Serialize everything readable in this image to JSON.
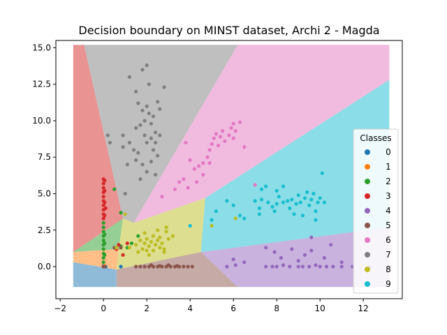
{
  "chart_data": {
    "type": "scatter",
    "title": "Decision boundary on MINST dataset, Archi 2 - Magda",
    "xlabel": "",
    "ylabel": "",
    "xlim": [
      -2.2,
      13.8
    ],
    "ylim": [
      -2.2,
      15.5
    ],
    "xticks": [
      -2,
      0,
      2,
      4,
      6,
      8,
      10,
      12
    ],
    "yticks": [
      0.0,
      2.5,
      5.0,
      7.5,
      10.0,
      12.5,
      15.0
    ],
    "grid": false,
    "legend": {
      "title": "Classes",
      "placement": "right",
      "labels": [
        "0",
        "1",
        "2",
        "3",
        "4",
        "5",
        "6",
        "7",
        "8",
        "9"
      ]
    },
    "class_colors": [
      "#1f77b4",
      "#ff7f0e",
      "#2ca02c",
      "#d62728",
      "#9467bd",
      "#8c564b",
      "#e377c2",
      "#7f7f7f",
      "#bcbd22",
      "#17becf"
    ],
    "decision_regions": [
      {
        "class": "0",
        "polygon": [
          [
            -1.4,
            -1.4
          ],
          [
            0.6,
            -1.4
          ],
          [
            0.6,
            -0.2
          ],
          [
            -1.4,
            0.3
          ]
        ]
      },
      {
        "class": "1",
        "polygon": [
          [
            -1.4,
            0.3
          ],
          [
            0.6,
            -0.2
          ],
          [
            0.7,
            1.2
          ],
          [
            -1.4,
            1.0
          ]
        ]
      },
      {
        "class": "2",
        "polygon": [
          [
            -1.4,
            1.0
          ],
          [
            0.7,
            1.2
          ],
          [
            0.9,
            3.3
          ],
          [
            -1.4,
            1.0
          ]
        ]
      },
      {
        "class": "3",
        "polygon": [
          [
            -1.4,
            15.2
          ],
          [
            -0.9,
            15.2
          ],
          [
            0.9,
            3.3
          ],
          [
            -1.4,
            1.0
          ]
        ]
      },
      {
        "class": "4",
        "polygon": [
          [
            4.5,
            1.0
          ],
          [
            13.2,
            2.7
          ],
          [
            13.2,
            -1.4
          ],
          [
            6.2,
            -1.4
          ]
        ]
      },
      {
        "class": "5",
        "polygon": [
          [
            0.6,
            -1.4
          ],
          [
            6.2,
            -1.4
          ],
          [
            4.5,
            1.0
          ],
          [
            0.6,
            -0.2
          ]
        ]
      },
      {
        "class": "6",
        "polygon": [
          [
            1.4,
            3.0
          ],
          [
            6.2,
            15.2
          ],
          [
            13.2,
            15.2
          ],
          [
            13.2,
            12.8
          ],
          [
            4.7,
            4.7
          ]
        ]
      },
      {
        "class": "7",
        "polygon": [
          [
            -0.9,
            15.2
          ],
          [
            6.2,
            15.2
          ],
          [
            1.4,
            3.0
          ],
          [
            0.9,
            3.3
          ]
        ]
      },
      {
        "class": "8",
        "polygon": [
          [
            0.6,
            -0.2
          ],
          [
            4.5,
            1.0
          ],
          [
            4.7,
            4.7
          ],
          [
            1.4,
            3.0
          ],
          [
            0.9,
            3.3
          ],
          [
            0.7,
            1.2
          ]
        ]
      },
      {
        "class": "9",
        "polygon": [
          [
            4.7,
            4.7
          ],
          [
            13.2,
            12.8
          ],
          [
            13.2,
            2.7
          ],
          [
            4.5,
            1.0
          ]
        ]
      }
    ],
    "series": [
      {
        "name": "0",
        "points": [
          [
            0.0,
            0.0
          ],
          [
            0.05,
            0.0
          ],
          [
            0.1,
            0.0
          ],
          [
            0.0,
            0.05
          ],
          [
            0.8,
            0.0
          ]
        ]
      },
      {
        "name": "1",
        "points": [
          [
            0.0,
            0.0
          ],
          [
            0.05,
            0.05
          ]
        ]
      },
      {
        "name": "2",
        "points": [
          [
            0.0,
            0.3
          ],
          [
            0.0,
            0.6
          ],
          [
            0.0,
            0.9
          ],
          [
            0.0,
            1.2
          ],
          [
            0.0,
            1.5
          ],
          [
            0.0,
            1.8
          ],
          [
            0.0,
            2.1
          ],
          [
            0.0,
            2.4
          ],
          [
            0.0,
            2.7
          ],
          [
            0.0,
            3.0
          ],
          [
            0.05,
            0.8
          ],
          [
            0.05,
            1.6
          ],
          [
            0.05,
            2.2
          ],
          [
            0.5,
            5.3
          ],
          [
            0.8,
            3.7
          ],
          [
            0.8,
            1.4
          ],
          [
            1.3,
            1.6
          ],
          [
            1.1,
            1.3
          ],
          [
            1.6,
            2.1
          ]
        ]
      },
      {
        "name": "3",
        "points": [
          [
            0.0,
            3.3
          ],
          [
            0.0,
            3.6
          ],
          [
            0.0,
            3.9
          ],
          [
            0.0,
            4.2
          ],
          [
            0.0,
            4.5
          ],
          [
            0.0,
            4.8
          ],
          [
            0.0,
            5.1
          ],
          [
            0.0,
            5.4
          ],
          [
            0.0,
            5.7
          ],
          [
            0.0,
            6.0
          ],
          [
            0.05,
            3.5
          ],
          [
            0.05,
            4.4
          ],
          [
            0.05,
            5.2
          ],
          [
            0.05,
            5.9
          ],
          [
            0.1,
            4.0
          ],
          [
            0.6,
            1.2
          ],
          [
            0.9,
            0.8
          ],
          [
            1.1,
            1.6
          ],
          [
            0.7,
            1.5
          ]
        ]
      },
      {
        "name": "4",
        "points": [
          [
            5.7,
            0.0
          ],
          [
            6.1,
            0.1
          ],
          [
            6.0,
            0.5
          ],
          [
            6.5,
            0.3
          ],
          [
            7.5,
            0.0
          ],
          [
            7.8,
            0.0
          ],
          [
            8.0,
            0.0
          ],
          [
            8.3,
            0.1
          ],
          [
            8.6,
            0.0
          ],
          [
            9.0,
            0.0
          ],
          [
            9.2,
            0.0
          ],
          [
            9.5,
            0.0
          ],
          [
            9.8,
            0.1
          ],
          [
            10.0,
            0.0
          ],
          [
            10.3,
            0.0
          ],
          [
            10.6,
            0.0
          ],
          [
            11.0,
            0.0
          ],
          [
            11.5,
            0.0
          ],
          [
            12.3,
            0.0
          ],
          [
            7.9,
            1.0
          ],
          [
            8.2,
            0.6
          ],
          [
            8.7,
            1.2
          ],
          [
            9.0,
            0.4
          ],
          [
            9.3,
            0.8
          ],
          [
            9.6,
            1.1
          ],
          [
            10.2,
            0.6
          ],
          [
            11.0,
            0.3
          ],
          [
            7.5,
            1.3
          ],
          [
            9.6,
            2.0
          ],
          [
            10.5,
            1.5
          ]
        ]
      },
      {
        "name": "5",
        "points": [
          [
            1.5,
            0.0
          ],
          [
            1.7,
            0.0
          ],
          [
            1.9,
            0.0
          ],
          [
            2.1,
            0.0
          ],
          [
            2.3,
            0.0
          ],
          [
            2.5,
            0.0
          ],
          [
            2.7,
            0.0
          ],
          [
            2.9,
            0.0
          ],
          [
            3.1,
            0.0
          ],
          [
            3.3,
            0.0
          ],
          [
            3.5,
            0.0
          ],
          [
            3.7,
            0.0
          ],
          [
            3.9,
            0.0
          ],
          [
            4.1,
            0.0
          ],
          [
            2.2,
            0.1
          ],
          [
            2.6,
            0.05
          ],
          [
            3.0,
            0.1
          ],
          [
            3.4,
            0.05
          ],
          [
            0.0,
            0.0
          ],
          [
            0.05,
            0.0
          ],
          [
            0.5,
            1.3
          ],
          [
            0.8,
            1.3
          ]
        ]
      },
      {
        "name": "6",
        "points": [
          [
            3.8,
            8.5
          ],
          [
            4.0,
            7.3
          ],
          [
            4.2,
            6.7
          ],
          [
            4.4,
            6.9
          ],
          [
            4.6,
            7.1
          ],
          [
            4.8,
            7.5
          ],
          [
            4.9,
            8.0
          ],
          [
            5.0,
            8.4
          ],
          [
            5.1,
            8.8
          ],
          [
            5.2,
            9.1
          ],
          [
            5.3,
            8.3
          ],
          [
            5.4,
            8.9
          ],
          [
            5.5,
            9.3
          ],
          [
            5.6,
            8.6
          ],
          [
            5.8,
            9.0
          ],
          [
            5.9,
            9.5
          ],
          [
            6.0,
            8.8
          ],
          [
            6.3,
            9.9
          ],
          [
            6.1,
            9.3
          ],
          [
            3.7,
            6.0
          ],
          [
            3.9,
            5.4
          ],
          [
            3.5,
            5.8
          ],
          [
            3.3,
            5.3
          ],
          [
            4.3,
            5.8
          ],
          [
            6.5,
            8.2
          ],
          [
            7.0,
            5.6
          ],
          [
            2.7,
            4.8
          ],
          [
            4.6,
            6.3
          ],
          [
            4.9,
            7.1
          ],
          [
            6.0,
            9.8
          ]
        ]
      },
      {
        "name": "7",
        "points": [
          [
            1.2,
            13.0
          ],
          [
            1.5,
            12.0
          ],
          [
            1.8,
            13.5
          ],
          [
            2.0,
            13.8
          ],
          [
            2.1,
            12.5
          ],
          [
            1.6,
            11.2
          ],
          [
            1.8,
            10.7
          ],
          [
            1.9,
            10.0
          ],
          [
            2.0,
            11.0
          ],
          [
            2.1,
            10.5
          ],
          [
            2.2,
            9.8
          ],
          [
            2.3,
            10.3
          ],
          [
            2.4,
            9.2
          ],
          [
            2.5,
            11.3
          ],
          [
            2.6,
            10.8
          ],
          [
            2.8,
            12.3
          ],
          [
            1.7,
            9.7
          ],
          [
            1.5,
            9.5
          ],
          [
            1.9,
            9.0
          ],
          [
            2.0,
            8.5
          ],
          [
            2.2,
            8.8
          ],
          [
            2.4,
            8.5
          ],
          [
            2.6,
            9.0
          ],
          [
            1.2,
            8.5
          ],
          [
            1.4,
            8.0
          ],
          [
            1.5,
            7.3
          ],
          [
            1.6,
            7.8
          ],
          [
            1.8,
            7.0
          ],
          [
            2.0,
            6.5
          ],
          [
            2.2,
            7.2
          ],
          [
            2.4,
            6.3
          ],
          [
            1.1,
            7.0
          ],
          [
            0.9,
            9.0
          ],
          [
            0.9,
            8.2
          ],
          [
            0.2,
            9.0
          ],
          [
            0.3,
            8.5
          ],
          [
            1.0,
            5.0
          ],
          [
            2.3,
            8.0
          ],
          [
            1.7,
            6.0
          ],
          [
            2.5,
            7.6
          ]
        ]
      },
      {
        "name": "8",
        "points": [
          [
            1.2,
            1.3
          ],
          [
            1.5,
            1.5
          ],
          [
            1.7,
            1.8
          ],
          [
            1.8,
            1.2
          ],
          [
            1.9,
            1.6
          ],
          [
            2.0,
            1.9
          ],
          [
            2.1,
            1.4
          ],
          [
            2.2,
            1.7
          ],
          [
            2.3,
            2.1
          ],
          [
            2.4,
            1.5
          ],
          [
            2.5,
            1.8
          ],
          [
            2.6,
            2.0
          ],
          [
            2.7,
            1.6
          ],
          [
            2.8,
            1.2
          ],
          [
            2.9,
            2.4
          ],
          [
            3.0,
            1.9
          ],
          [
            1.9,
            2.3
          ],
          [
            2.0,
            1.1
          ],
          [
            2.3,
            1.1
          ],
          [
            2.5,
            2.5
          ],
          [
            2.1,
            0.8
          ],
          [
            1.6,
            1.0
          ],
          [
            2.6,
            1.3
          ],
          [
            1.0,
            3.6
          ],
          [
            0.6,
            1.3
          ],
          [
            5.0,
            2.8
          ],
          [
            6.1,
            3.3
          ],
          [
            2.8,
            1.0
          ],
          [
            2.9,
            2.7
          ],
          [
            3.2,
            2.1
          ]
        ]
      },
      {
        "name": "9",
        "points": [
          [
            7.0,
            4.5
          ],
          [
            7.2,
            4.0
          ],
          [
            7.3,
            4.6
          ],
          [
            7.5,
            5.5
          ],
          [
            7.6,
            4.4
          ],
          [
            7.8,
            4.1
          ],
          [
            7.9,
            3.8
          ],
          [
            8.0,
            4.3
          ],
          [
            8.1,
            4.8
          ],
          [
            8.3,
            4.4
          ],
          [
            8.5,
            4.5
          ],
          [
            8.6,
            4.0
          ],
          [
            8.7,
            4.6
          ],
          [
            8.8,
            3.6
          ],
          [
            8.9,
            4.3
          ],
          [
            9.0,
            4.9
          ],
          [
            9.1,
            4.4
          ],
          [
            9.3,
            4.7
          ],
          [
            9.4,
            5.1
          ],
          [
            9.5,
            4.2
          ],
          [
            9.6,
            4.6
          ],
          [
            9.7,
            5.0
          ],
          [
            9.9,
            4.4
          ],
          [
            10.0,
            4.7
          ],
          [
            10.1,
            6.4
          ],
          [
            9.8,
            3.8
          ],
          [
            9.2,
            3.5
          ],
          [
            9.8,
            3.2
          ],
          [
            8.3,
            5.5
          ],
          [
            8.0,
            5.2
          ],
          [
            7.3,
            5.3
          ],
          [
            6.3,
            3.5
          ],
          [
            6.5,
            3.3
          ],
          [
            5.7,
            4.5
          ],
          [
            5.2,
            3.8
          ],
          [
            5.0,
            3.2
          ],
          [
            4.0,
            2.8
          ],
          [
            6.0,
            4.2
          ],
          [
            7.2,
            3.6
          ],
          [
            10.2,
            4.4
          ]
        ]
      }
    ]
  }
}
